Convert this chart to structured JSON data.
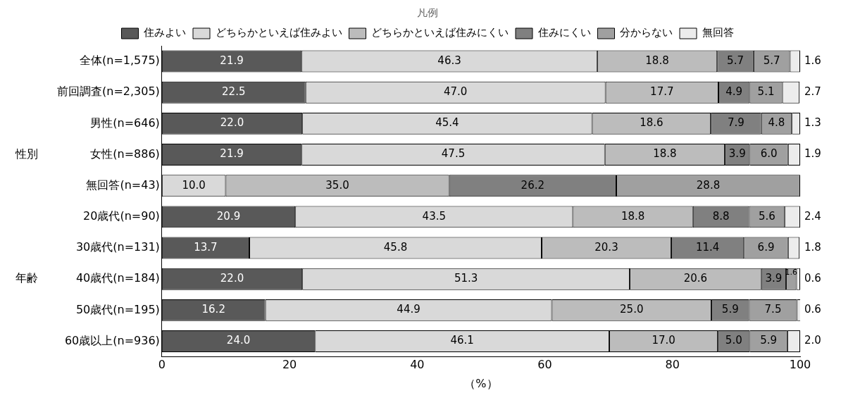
{
  "chart_data": {
    "type": "bar",
    "orientation": "horizontal",
    "stacked": true,
    "legend": "top",
    "legend_title": "凡例",
    "xlabel": "（%）",
    "xlim": [
      0,
      100
    ],
    "xticks": [
      0,
      20,
      40,
      60,
      80,
      100
    ],
    "grid": false,
    "categories": [
      "全体(n=1,575)",
      "前回調査(n=2,305)",
      "男性(n=646)",
      "女性(n=886)",
      "無回答(n=43)",
      "20歳代(n=90)",
      "30歳代(n=131)",
      "40歳代(n=184)",
      "50歳代(n=195)",
      "60歳以上(n=936)"
    ],
    "annotations": [
      "性別",
      "年齢"
    ],
    "series": [
      {
        "name": "住みよい",
        "color": "#595959",
        "values": [
          21.9,
          22.5,
          22.0,
          21.9,
          null,
          20.9,
          13.7,
          22.0,
          16.2,
          24.0
        ],
        "value_labels": [
          "21.9",
          "22.5",
          "22.0",
          "21.9",
          null,
          "20.9",
          "13.7",
          "22.0",
          "16.2",
          "24.0"
        ]
      },
      {
        "name": "どちらかといえば住みよい",
        "color": "#d9d9d9",
        "values": [
          46.3,
          47.0,
          45.4,
          47.5,
          10.0,
          43.5,
          45.8,
          51.3,
          44.9,
          46.1
        ],
        "value_labels": [
          "46.3",
          "47.0",
          "45.4",
          "47.5",
          "10.0",
          "43.5",
          "45.8",
          "51.3",
          "44.9",
          "46.1"
        ]
      },
      {
        "name": "どちらかといえば住みにくい",
        "color": "#bcbcbc",
        "values": [
          18.8,
          17.7,
          18.6,
          18.8,
          35.0,
          18.8,
          20.3,
          20.6,
          25.0,
          17.0
        ],
        "value_labels": [
          "18.8",
          "17.7",
          "18.6",
          "18.8",
          "35.0",
          "18.8",
          "20.3",
          "20.6",
          "25.0",
          "17.0"
        ]
      },
      {
        "name": "住みにくい",
        "color": "#808080",
        "values": [
          5.7,
          4.9,
          7.9,
          3.9,
          26.2,
          8.8,
          11.4,
          3.9,
          5.9,
          5.0
        ],
        "value_labels": [
          "5.7",
          "4.9",
          "7.9",
          "3.9",
          "26.2",
          "8.8",
          "11.4",
          "3.9",
          "5.9",
          "5.0"
        ]
      },
      {
        "name": "分からない",
        "color": "#a0a0a0",
        "values": [
          5.7,
          5.1,
          4.8,
          6.0,
          28.8,
          5.6,
          6.9,
          1.6,
          7.5,
          5.9
        ],
        "value_labels": [
          "5.7",
          "5.1",
          "4.8",
          "6.0",
          "28.8",
          "5.6",
          "6.9",
          "1.6",
          "7.5",
          "5.9"
        ]
      },
      {
        "name": "無回答",
        "color": "#ececec",
        "values": [
          1.6,
          2.7,
          1.3,
          1.9,
          null,
          2.4,
          1.8,
          0.6,
          0.6,
          2.0
        ],
        "value_labels": [
          "1.6",
          "2.7",
          "1.3",
          "1.9",
          null,
          "2.4",
          "1.8",
          "0.6",
          "0.6",
          "2.0"
        ]
      }
    ]
  }
}
